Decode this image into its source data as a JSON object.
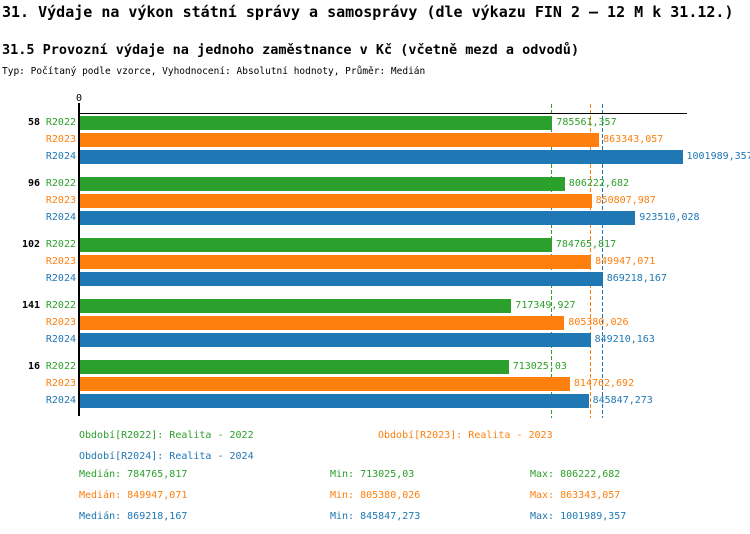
{
  "header": {
    "title": "31. Výdaje na výkon státní správy a samosprávy (dle výkazu FIN 2 – 12 M k 31.12.)",
    "subtitle": "31.5 Provozní výdaje na jednoho zaměstnance v Kč (včetně mezd a odvodů)",
    "meta": "Typ: Počítaný podle vzorce, Vyhodnocení: Absolutní hodnoty, Průměr: Medián"
  },
  "chart_data": {
    "type": "bar",
    "orientation": "horizontal",
    "title": "31.5 Provozní výdaje na jednoho zaměstnance v Kč (včetně mezd a odvodů)",
    "xlabel": "",
    "ylabel": "",
    "origin_label": "0",
    "xlim": [
      0,
      1002000
    ],
    "grid": "per-series median lines, dashed, drawn behind bars",
    "legend_position": "bottom",
    "categories": [
      "58",
      "96",
      "102",
      "141",
      "16"
    ],
    "series": [
      {
        "name": "R2022",
        "color": "#2ca02c",
        "values": [
          785561.357,
          806222.682,
          784765.817,
          717349.927,
          713025.03
        ],
        "value_labels": [
          "785561,357",
          "806222,682",
          "784765,817",
          "717349,927",
          "713025,03"
        ],
        "median": 784765.817
      },
      {
        "name": "R2023",
        "color": "#ff7f0e",
        "values": [
          863343.057,
          850807.987,
          849947.071,
          805380.026,
          814762.692
        ],
        "value_labels": [
          "863343,057",
          "850807,987",
          "849947,071",
          "805380,026",
          "814762,692"
        ],
        "median": 849947.071
      },
      {
        "name": "R2024",
        "color": "#1f77b4",
        "values": [
          1001989.357,
          923510.028,
          869218.167,
          849210.163,
          845847.273
        ],
        "value_labels": [
          "1001989,357",
          "923510,028",
          "869218,167",
          "849210,163",
          "845847,273"
        ],
        "median": 869218.167
      }
    ]
  },
  "legend": {
    "items": [
      {
        "label": "Období[R2022]: Realita - 2022"
      },
      {
        "label": "Období[R2023]: Realita - 2023"
      },
      {
        "label": "Období[R2024]: Realita - 2024"
      }
    ]
  },
  "stats": {
    "rows": [
      {
        "median": "Medián: 784765,817",
        "min": "Min: 713025,03",
        "max": "Max: 806222,682"
      },
      {
        "median": "Medián: 849947,071",
        "min": "Min: 805380,026",
        "max": "Max: 863343,057"
      },
      {
        "median": "Medián: 869218,167",
        "min": "Min: 845847,273",
        "max": "Max: 1001989,357"
      }
    ]
  }
}
